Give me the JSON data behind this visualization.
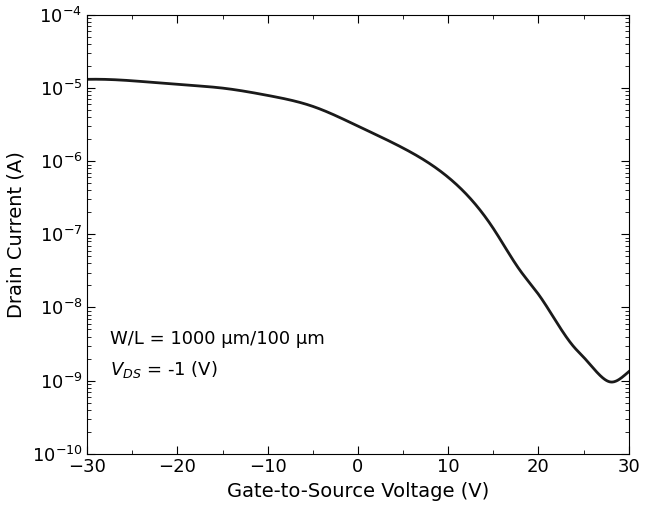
{
  "xlabel": "Gate-to-Source Voltage (V)",
  "ylabel": "Drain Current (A)",
  "xlim": [
    -30,
    30
  ],
  "ylim": [
    1e-10,
    0.0001
  ],
  "xticks": [
    -30,
    -20,
    -10,
    0,
    10,
    20,
    30
  ],
  "annotation_line1": "W/L = 1000 μm/100 μm",
  "annotation_line2_suffix": " = -1 (V)",
  "line_color": "#1a1a1a",
  "line_width": 2.0,
  "background_color": "#ffffff",
  "font_size_labels": 14,
  "font_size_ticks": 13,
  "font_size_annotation": 13
}
